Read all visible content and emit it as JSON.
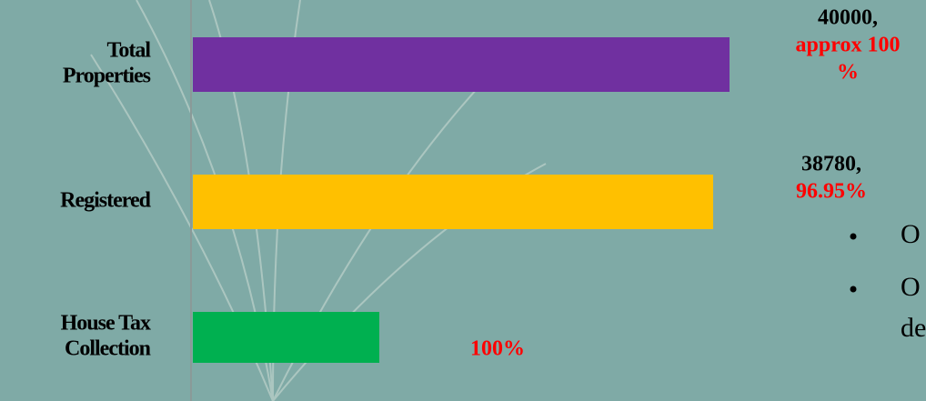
{
  "chart_data": {
    "type": "bar",
    "orientation": "horizontal",
    "categories": [
      [
        "Total",
        "Properties"
      ],
      [
        "Registered"
      ],
      [
        "House Tax",
        "Collection"
      ]
    ],
    "values": [
      40000,
      38780,
      13900
    ],
    "colors": [
      "#7030a0",
      "#ffc000",
      "#00b050"
    ],
    "value_labels": [
      "40000,",
      "38780,",
      null
    ],
    "percent_labels": [
      [
        "approx 100",
        "%"
      ],
      [
        "96.95%"
      ],
      [
        "100%"
      ]
    ],
    "xlim": [
      0,
      40000
    ]
  },
  "side_text": [
    [
      "O"
    ],
    [
      "O",
      "de"
    ]
  ]
}
